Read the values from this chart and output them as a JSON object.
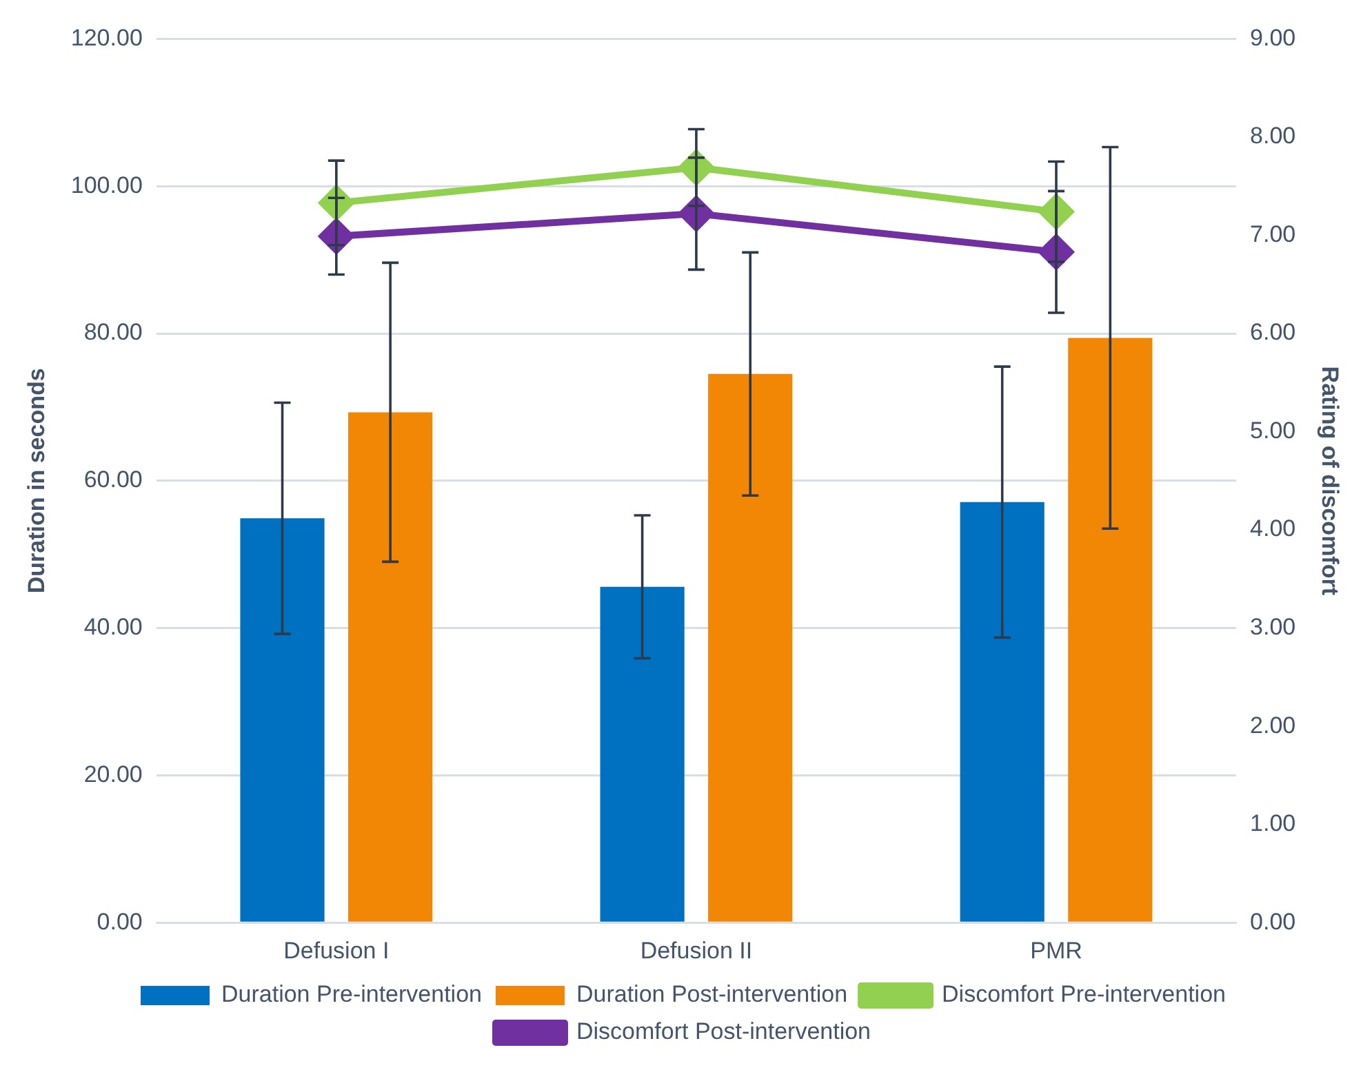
{
  "chart_data": {
    "type": "bar",
    "ylabel": "Duration in seconds",
    "y2label": "Rating of discomfort",
    "categories": [
      "Defusion I",
      "Defusion II",
      "PMR"
    ],
    "series": [
      {
        "name": "Duration Pre-intervention",
        "color": "#0070c0",
        "values": [
          54.9,
          45.6,
          57.1
        ],
        "errors": [
          15.7,
          9.7,
          18.4
        ]
      },
      {
        "name": "Duration Post-intervention",
        "color": "#f28705",
        "values": [
          69.3,
          74.5,
          79.4
        ],
        "errors": [
          20.3,
          16.5,
          25.9
        ]
      },
      {
        "name": "Discomfort Pre-intervention",
        "type": "line",
        "axis": "y2",
        "color": "#92d050",
        "values": [
          7.33,
          7.69,
          7.24
        ],
        "errors": [
          0.43,
          0.39,
          0.51
        ]
      },
      {
        "name": "Discomfort Post-intervention",
        "type": "line",
        "axis": "y2",
        "color": "#7030a0",
        "values": [
          6.99,
          7.22,
          6.83
        ],
        "errors": [
          0.39,
          0.57,
          0.62
        ]
      }
    ],
    "ylim": [
      0,
      120
    ],
    "yticks": [
      {
        "value": 0,
        "label": "0.00"
      },
      {
        "value": 20,
        "label": "20.00"
      },
      {
        "value": 40,
        "label": "40.00"
      },
      {
        "value": 60,
        "label": "60.00"
      },
      {
        "value": 80,
        "label": "80.00"
      },
      {
        "value": 100,
        "label": "100.00"
      },
      {
        "value": 120,
        "label": "120.00"
      }
    ],
    "y2lim": [
      0,
      9
    ],
    "y2ticks": [
      {
        "value": 0,
        "label": "0.00"
      },
      {
        "value": 1,
        "label": "1.00"
      },
      {
        "value": 2,
        "label": "2.00"
      },
      {
        "value": 3,
        "label": "3.00"
      },
      {
        "value": 4,
        "label": "4.00"
      },
      {
        "value": 5,
        "label": "5.00"
      },
      {
        "value": 6,
        "label": "6.00"
      },
      {
        "value": 7,
        "label": "7.00"
      },
      {
        "value": 8,
        "label": "8.00"
      },
      {
        "value": 9,
        "label": "9.00"
      }
    ],
    "grid": "y",
    "legend": "bottom",
    "marker": "diamond",
    "line_style": "solid"
  }
}
